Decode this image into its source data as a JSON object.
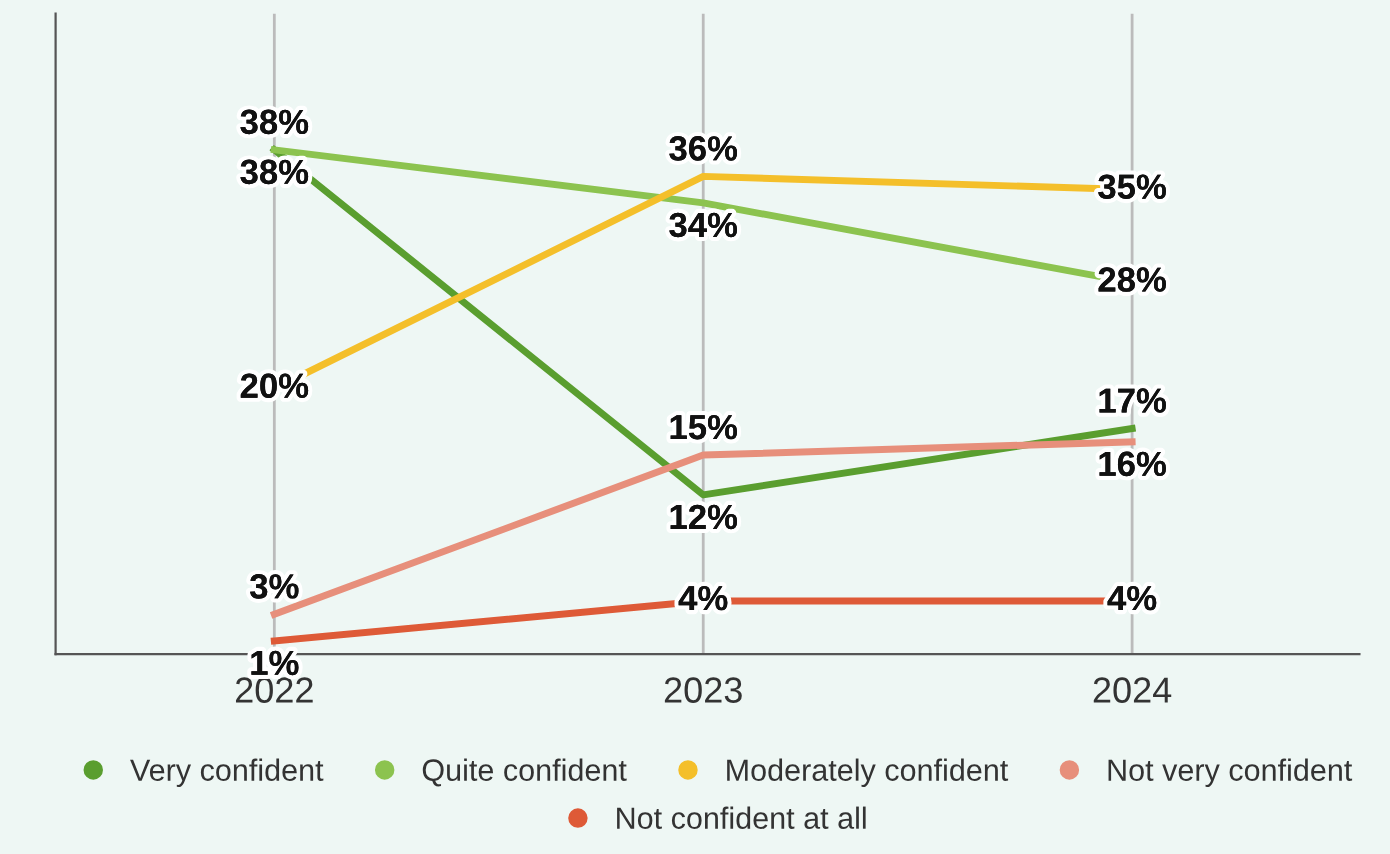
{
  "chart_data": {
    "type": "line",
    "categories": [
      "2022",
      "2023",
      "2024"
    ],
    "series": [
      {
        "name": "Very confident",
        "color": "#5a9e2f",
        "values": [
          38,
          12,
          17
        ],
        "value_labels": [
          "38%",
          "12%",
          "17%"
        ]
      },
      {
        "name": "Quite confident",
        "color": "#8cc34f",
        "values": [
          38,
          34,
          28
        ],
        "value_labels": [
          "38%",
          "34%",
          "28%"
        ]
      },
      {
        "name": "Moderately confident",
        "color": "#f4bf2a",
        "values": [
          20,
          36,
          35
        ],
        "value_labels": [
          "20%",
          "36%",
          "35%"
        ]
      },
      {
        "name": "Not very confident",
        "color": "#e78f7b",
        "values": [
          3,
          15,
          16
        ],
        "value_labels": [
          "3%",
          "15%",
          "16%"
        ]
      },
      {
        "name": "Not confident at all",
        "color": "#de5a37",
        "values": [
          1,
          4,
          4
        ],
        "value_labels": [
          "1%",
          "4%",
          "4%"
        ]
      }
    ],
    "grid": "x",
    "legend": "bottom",
    "marker": "none",
    "line_style": "solid"
  }
}
